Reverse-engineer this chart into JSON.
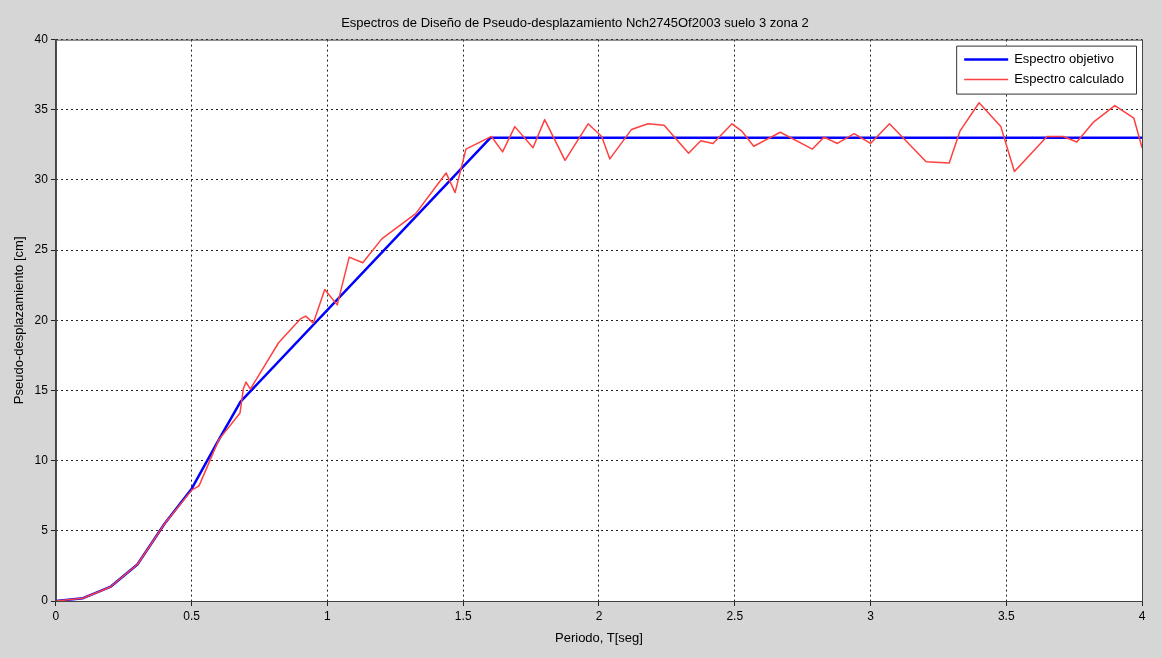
{
  "chart_data": {
    "type": "line",
    "title": "Espectros de Diseño de Pseudo-desplazamiento Nch2745Of2003 suelo 3 zona 2",
    "xlabel": "Periodo, T[seg]",
    "ylabel": "Pseudo-desplazamiento [cm]",
    "xlim": [
      0,
      4
    ],
    "xticks": [
      0,
      0.5,
      1,
      1.5,
      2,
      2.5,
      3,
      3.5,
      4
    ],
    "ylim": [
      0,
      40
    ],
    "yticks": [
      0,
      5,
      10,
      15,
      20,
      25,
      30,
      35,
      40
    ],
    "grid": true,
    "legend": "top right",
    "marker": "none",
    "line_style": "solid",
    "series": [
      {
        "name": "Espectro objetivo",
        "color": "#0000ff",
        "x": [
          0,
          0.1,
          0.2,
          0.3,
          0.4,
          0.5,
          0.6,
          0.68,
          1.6,
          4
        ],
        "values": [
          0,
          0.2,
          1,
          2.6,
          5.5,
          8,
          11.5,
          14.2,
          33,
          33
        ]
      },
      {
        "name": "Espectro calculado",
        "color": "#ff4040",
        "x": [
          0,
          0.1,
          0.2,
          0.3,
          0.4,
          0.5,
          0.527,
          0.6,
          0.678,
          0.69,
          0.7,
          0.716,
          0.82,
          0.9,
          0.92,
          0.948,
          0.99,
          1.036,
          1.08,
          1.13,
          1.2,
          1.325,
          1.437,
          1.47,
          1.51,
          1.604,
          1.645,
          1.69,
          1.757,
          1.8,
          1.875,
          1.96,
          2.01,
          2.04,
          2.12,
          2.18,
          2.24,
          2.33,
          2.375,
          2.42,
          2.49,
          2.525,
          2.57,
          2.668,
          2.786,
          2.829,
          2.878,
          2.94,
          3.0,
          3.07,
          3.205,
          3.29,
          3.33,
          3.4,
          3.48,
          3.53,
          3.65,
          3.71,
          3.76,
          3.82,
          3.9,
          3.97,
          4.0
        ],
        "values": [
          0,
          0.2,
          1,
          2.6,
          5.5,
          7.9,
          8.2,
          11.5,
          13.4,
          15.1,
          15.6,
          15.1,
          18.4,
          20.1,
          20.3,
          19.8,
          22.2,
          21.1,
          24.5,
          24.1,
          25.8,
          27.6,
          30.5,
          29.1,
          32.2,
          33.1,
          32,
          33.8,
          32.3,
          34.3,
          31.4,
          34,
          33.1,
          31.5,
          33.6,
          34,
          33.9,
          31.9,
          32.8,
          32.6,
          34,
          33.5,
          32.4,
          33.4,
          32.2,
          33.05,
          32.6,
          33.3,
          32.6,
          34,
          31.3,
          31.2,
          33.5,
          35.5,
          33.8,
          30.6,
          33.1,
          33.1,
          32.7,
          34.1,
          35.3,
          34.4,
          32.3
        ]
      }
    ]
  }
}
